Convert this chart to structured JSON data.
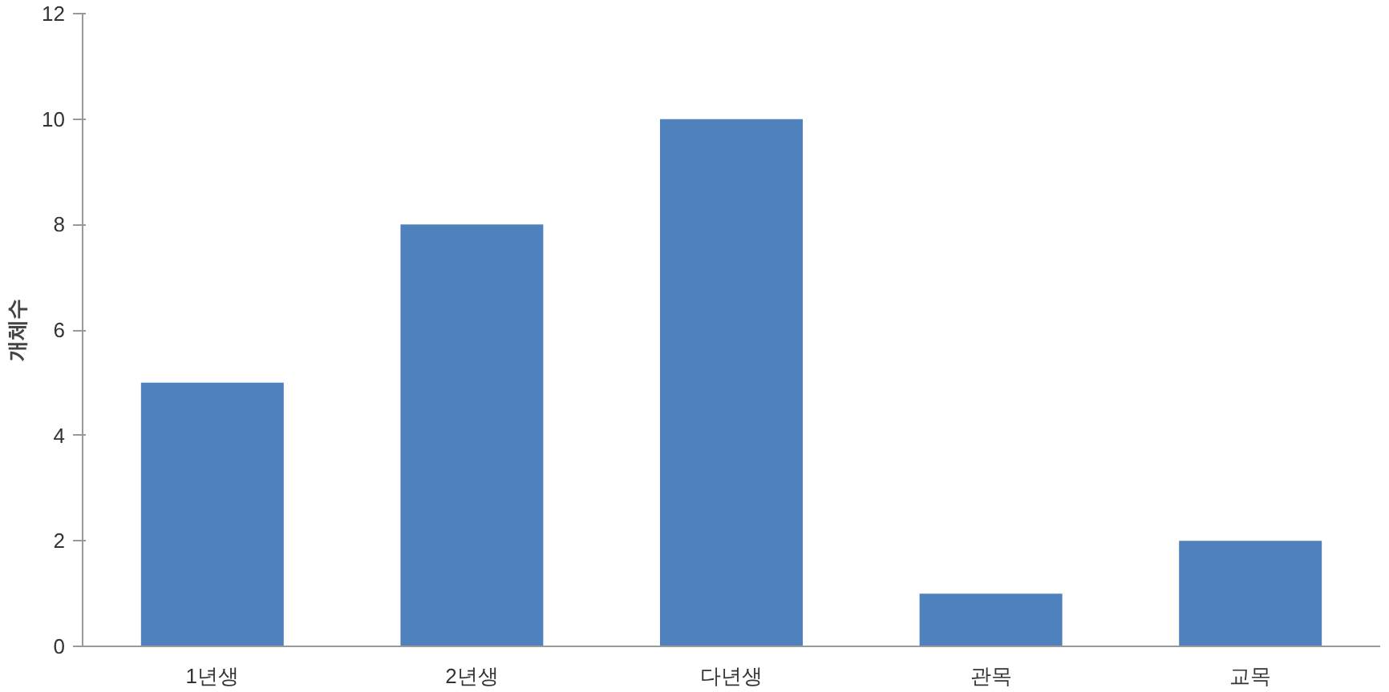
{
  "chart_data": {
    "type": "bar",
    "ylabel": "개체수",
    "categories": [
      "1년생",
      "2년생",
      "다년생",
      "관목",
      "교목"
    ],
    "values": [
      5,
      8,
      10,
      1,
      2
    ],
    "color": "#4f81bd",
    "ylim": [
      0,
      12
    ],
    "yticks": [
      0,
      2,
      4,
      6,
      8,
      10,
      12
    ],
    "grid": false
  }
}
